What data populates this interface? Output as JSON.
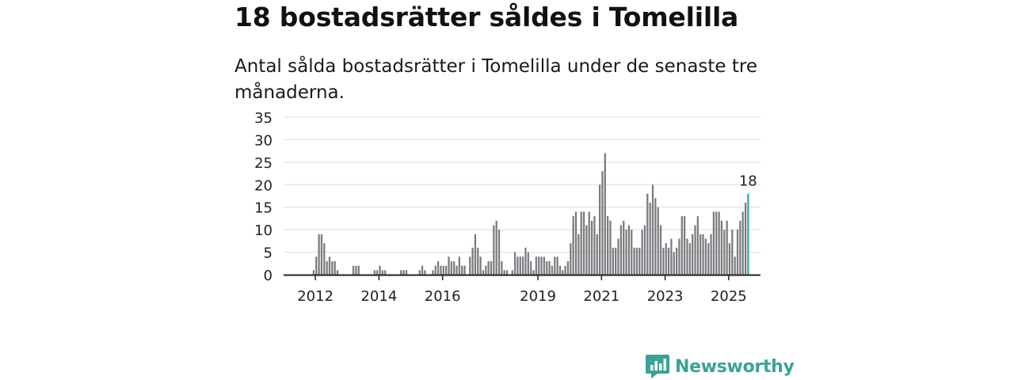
{
  "header": {
    "title": "18 bostadsrätter såldes i Tomelilla",
    "subtitle": "Antal sålda bostadsrätter i Tomelilla under de senaste tre månaderna."
  },
  "brand": {
    "name": "Newsworthy",
    "color": "#3aa396",
    "icon": "newsworthy-logo-icon"
  },
  "chart_data": {
    "type": "bar",
    "grid": true,
    "ylim": [
      0,
      35
    ],
    "yticks": [
      0,
      5,
      10,
      15,
      20,
      25,
      30,
      35
    ],
    "xticks": [
      {
        "label": "2012",
        "x": 2012.0
      },
      {
        "label": "2014",
        "x": 2014.0
      },
      {
        "label": "2016",
        "x": 2016.0
      },
      {
        "label": "2019",
        "x": 2019.0
      },
      {
        "label": "2021",
        "x": 2021.0
      },
      {
        "label": "2023",
        "x": 2023.0
      },
      {
        "label": "2025",
        "x": 2025.0
      }
    ],
    "xrange": [
      2011.0,
      2026.0
    ],
    "bar_color": "#7a7a7f",
    "highlight_color": "#2aa898",
    "highlight_label": "18",
    "series": [
      {
        "start": "2011-12",
        "values": [
          1,
          4,
          9,
          9,
          7,
          3,
          4,
          3,
          3,
          1,
          0,
          0,
          0,
          0,
          0,
          2,
          2,
          2,
          0,
          0,
          0,
          0,
          0,
          1,
          1,
          2,
          1,
          1,
          0,
          0,
          0,
          0,
          0,
          1,
          1,
          1,
          0,
          0,
          0,
          0,
          1,
          2,
          1,
          0,
          0,
          1,
          2,
          3,
          2,
          2,
          2,
          4,
          3,
          3,
          2,
          4,
          2,
          2,
          0,
          4,
          6,
          9,
          6,
          4,
          1,
          2,
          3,
          3,
          11,
          12,
          10,
          3,
          1,
          1,
          0,
          1,
          5,
          4,
          4,
          4,
          6,
          5,
          3,
          1,
          4,
          4,
          4,
          4,
          3,
          3,
          2,
          4,
          4,
          2,
          1,
          2,
          3,
          7,
          13,
          14,
          9,
          14,
          14,
          11,
          14,
          12,
          13,
          9,
          20,
          23,
          27,
          13,
          12,
          6,
          6,
          8,
          11,
          12,
          10,
          11,
          10,
          6,
          6,
          6,
          10,
          11,
          18,
          16,
          20,
          17,
          15,
          11,
          6,
          7,
          6,
          8,
          5,
          6,
          8,
          13,
          13,
          8,
          7,
          9,
          11,
          13,
          9,
          9,
          8,
          7,
          9,
          14,
          14,
          14,
          12,
          10,
          12,
          7,
          10,
          4,
          10,
          12,
          14,
          16,
          18
        ]
      }
    ]
  }
}
